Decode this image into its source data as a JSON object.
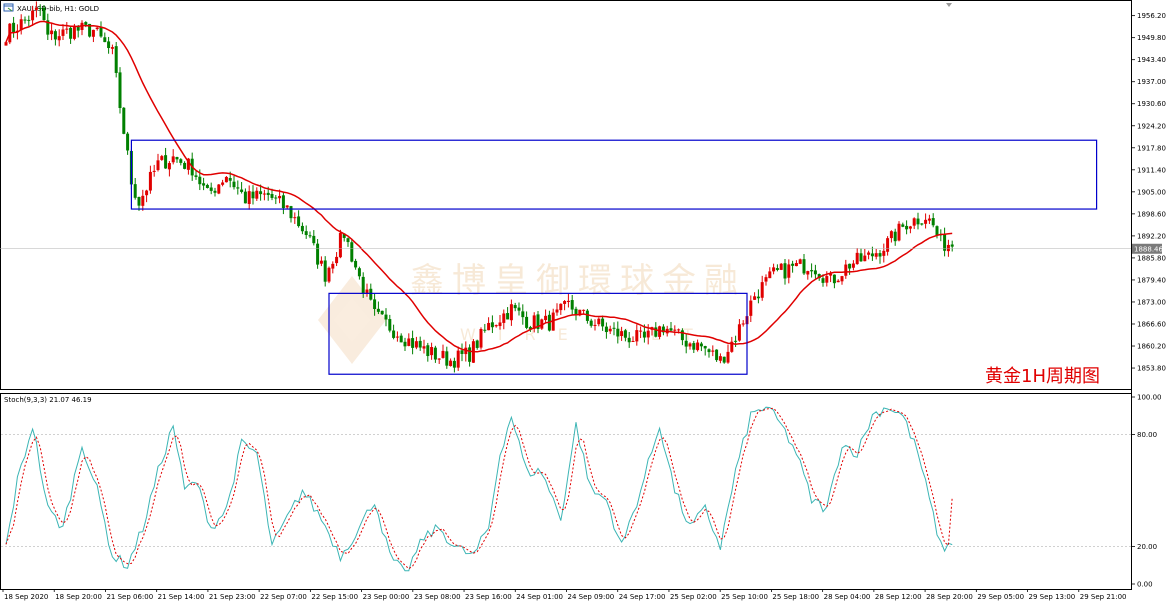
{
  "header": {
    "symbol_line": "XAUUSD-bib, H1:  GOLD",
    "stoch_line": "Stoch(9,3,3) 21.07 46.19"
  },
  "annotation": {
    "label": "黄金1H周期图"
  },
  "watermark": {
    "text": "鑫博皇御環球金融",
    "sub": "WIRE NET"
  },
  "colors": {
    "bull": "#e00000",
    "bear": "#008000",
    "ma": "#e00000",
    "box": "#0000cc",
    "stoch_main": "#3cb5b5",
    "stoch_signal": "#e00000",
    "price_marker": "#7a7a7a"
  },
  "chart_data": [
    {
      "type": "candlestick",
      "title": "XAUUSD-bib, H1:  GOLD",
      "ylim": [
        1848.0,
        1959.0
      ],
      "price_ticks": [
        "1956.20",
        "1949.80",
        "1943.40",
        "1937.00",
        "1930.60",
        "1924.20",
        "1917.80",
        "1911.40",
        "1905.00",
        "1898.60",
        "1892.20",
        "1885.80",
        "1879.40",
        "1873.00",
        "1866.60",
        "1860.20",
        "1853.80"
      ],
      "price_tick_values": [
        1956.2,
        1949.8,
        1943.4,
        1937.0,
        1930.6,
        1924.2,
        1917.8,
        1911.4,
        1905.0,
        1898.6,
        1892.2,
        1885.8,
        1879.4,
        1873.0,
        1866.6,
        1860.2,
        1853.8
      ],
      "current_price": {
        "label": "1888.46",
        "value": 1888.46
      },
      "anchors": [
        [
          0,
          1951
        ],
        [
          4,
          1954
        ],
        [
          9,
          1958
        ],
        [
          11,
          1950
        ],
        [
          18,
          1952
        ],
        [
          23,
          1952
        ],
        [
          28,
          1945
        ],
        [
          30,
          1930
        ],
        [
          33,
          1908
        ],
        [
          35,
          1902
        ],
        [
          40,
          1913
        ],
        [
          44,
          1915
        ],
        [
          49,
          1912
        ],
        [
          53,
          1904
        ],
        [
          58,
          1910
        ],
        [
          63,
          1903
        ],
        [
          69,
          1904
        ],
        [
          74,
          1900
        ],
        [
          79,
          1893
        ],
        [
          84,
          1881
        ],
        [
          89,
          1893
        ],
        [
          93,
          1880
        ],
        [
          97,
          1869
        ],
        [
          102,
          1865
        ],
        [
          107,
          1861
        ],
        [
          112,
          1858
        ],
        [
          117,
          1856
        ],
        [
          122,
          1858
        ],
        [
          127,
          1866
        ],
        [
          133,
          1871
        ],
        [
          138,
          1867
        ],
        [
          143,
          1867
        ],
        [
          148,
          1872
        ],
        [
          153,
          1868
        ],
        [
          158,
          1865
        ],
        [
          163,
          1863
        ],
        [
          168,
          1862
        ],
        [
          173,
          1866
        ],
        [
          178,
          1862
        ],
        [
          183,
          1860
        ],
        [
          188,
          1856
        ],
        [
          192,
          1863
        ],
        [
          197,
          1875
        ],
        [
          202,
          1881
        ],
        [
          207,
          1883
        ],
        [
          212,
          1884
        ],
        [
          217,
          1879
        ],
        [
          222,
          1884
        ],
        [
          227,
          1886
        ],
        [
          232,
          1890
        ],
        [
          237,
          1896
        ],
        [
          242,
          1898
        ],
        [
          244,
          1895
        ],
        [
          246,
          1890
        ]
      ],
      "overlays": [
        {
          "name": "",
          "type": "moving-average"
        }
      ],
      "rectangles": [
        {
          "x_from": 33,
          "x_to": 287,
          "y_top": 1920.0,
          "y_bottom": 1900.0
        },
        {
          "x_from": 85,
          "x_to": 195,
          "y_top": 1875.5,
          "y_bottom": 1852.0
        }
      ]
    },
    {
      "type": "line",
      "title": "Stoch(9,3,3) 21.07 46.19",
      "ylim": [
        0,
        100
      ],
      "y_ticks": [
        "100.00",
        "80.00",
        "20.00",
        "0.00"
      ],
      "y_tick_values": [
        100,
        80,
        20,
        0
      ],
      "levels": [
        80,
        20
      ],
      "anchors_main": [
        [
          0,
          20
        ],
        [
          3,
          55
        ],
        [
          7,
          85
        ],
        [
          11,
          40
        ],
        [
          15,
          30
        ],
        [
          20,
          75
        ],
        [
          24,
          50
        ],
        [
          28,
          15
        ],
        [
          32,
          10
        ],
        [
          36,
          30
        ],
        [
          40,
          60
        ],
        [
          44,
          85
        ],
        [
          47,
          50
        ],
        [
          50,
          55
        ],
        [
          54,
          30
        ],
        [
          58,
          40
        ],
        [
          62,
          75
        ],
        [
          66,
          70
        ],
        [
          70,
          20
        ],
        [
          74,
          35
        ],
        [
          78,
          50
        ],
        [
          83,
          35
        ],
        [
          88,
          15
        ],
        [
          93,
          30
        ],
        [
          97,
          45
        ],
        [
          101,
          15
        ],
        [
          105,
          5
        ],
        [
          110,
          25
        ],
        [
          114,
          30
        ],
        [
          118,
          20
        ],
        [
          123,
          15
        ],
        [
          127,
          30
        ],
        [
          130,
          70
        ],
        [
          133,
          90
        ],
        [
          137,
          60
        ],
        [
          141,
          60
        ],
        [
          146,
          35
        ],
        [
          150,
          85
        ],
        [
          154,
          50
        ],
        [
          158,
          45
        ],
        [
          162,
          20
        ],
        [
          167,
          50
        ],
        [
          172,
          85
        ],
        [
          176,
          50
        ],
        [
          180,
          30
        ],
        [
          184,
          40
        ],
        [
          188,
          20
        ],
        [
          192,
          60
        ],
        [
          196,
          90
        ],
        [
          200,
          95
        ],
        [
          204,
          85
        ],
        [
          208,
          70
        ],
        [
          212,
          45
        ],
        [
          216,
          40
        ],
        [
          220,
          75
        ],
        [
          224,
          70
        ],
        [
          228,
          90
        ],
        [
          232,
          95
        ],
        [
          236,
          90
        ],
        [
          240,
          70
        ],
        [
          243,
          45
        ],
        [
          246,
          20
        ]
      ],
      "series": [
        {
          "name": "",
          "last": 21.07
        },
        {
          "name": "",
          "last": 46.19
        }
      ]
    }
  ],
  "time_axis": [
    "18 Sep 2020",
    "18 Sep 20:00",
    "21 Sep 06:00",
    "21 Sep 14:00",
    "21 Sep 23:00",
    "22 Sep 07:00",
    "22 Sep 15:00",
    "23 Sep 00:00",
    "23 Sep 08:00",
    "23 Sep 16:00",
    "24 Sep 01:00",
    "24 Sep 09:00",
    "24 Sep 17:00",
    "25 Sep 02:00",
    "25 Sep 10:00",
    "25 Sep 18:00",
    "28 Sep 04:00",
    "28 Sep 12:00",
    "28 Sep 20:00",
    "29 Sep 05:00",
    "29 Sep 13:00",
    "29 Sep 21:00"
  ]
}
